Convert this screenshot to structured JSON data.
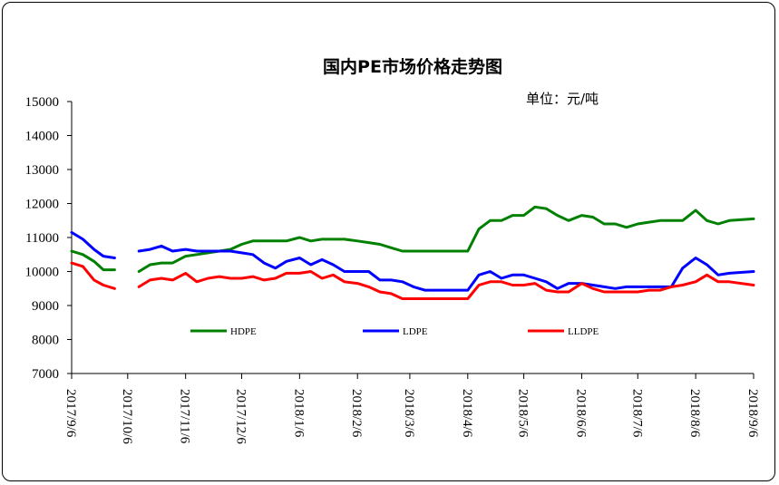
{
  "chart_data": {
    "type": "line",
    "title": "国内PE市场价格走势图",
    "unit_label": "单位：元/吨",
    "ylim": [
      7000,
      15000
    ],
    "yticks": [
      7000,
      8000,
      9000,
      10000,
      11000,
      12000,
      13000,
      14000,
      15000
    ],
    "x_start": "2017-09-06",
    "x_end": "2018-09-06",
    "x_ticks": [
      "2017/9/6",
      "2017/10/6",
      "2017/11/6",
      "2017/12/6",
      "2018/1/6",
      "2018/2/6",
      "2018/3/6",
      "2018/4/6",
      "2018/5/6",
      "2018/6/6",
      "2018/7/6",
      "2018/8/6",
      "2018/9/6"
    ],
    "legend_position": "bottom-inside",
    "grid": false,
    "series": [
      {
        "name": "HDPE",
        "color": "#008000",
        "segments": [
          [
            [
              "2017-09-06",
              10600
            ],
            [
              "2017-09-12",
              10500
            ],
            [
              "2017-09-18",
              10300
            ],
            [
              "2017-09-23",
              10050
            ],
            [
              "2017-09-29",
              10050
            ]
          ],
          [
            [
              "2017-10-12",
              10000
            ],
            [
              "2017-10-18",
              10200
            ],
            [
              "2017-10-24",
              10250
            ],
            [
              "2017-10-30",
              10250
            ],
            [
              "2017-11-06",
              10450
            ],
            [
              "2017-11-12",
              10500
            ],
            [
              "2017-11-18",
              10550
            ],
            [
              "2017-11-24",
              10600
            ],
            [
              "2017-11-30",
              10650
            ],
            [
              "2017-12-06",
              10800
            ],
            [
              "2017-12-12",
              10900
            ],
            [
              "2017-12-18",
              10900
            ],
            [
              "2017-12-24",
              10900
            ],
            [
              "2017-12-30",
              10900
            ],
            [
              "2018-01-06",
              11000
            ],
            [
              "2018-01-12",
              10900
            ],
            [
              "2018-01-18",
              10950
            ],
            [
              "2018-01-24",
              10950
            ],
            [
              "2018-01-30",
              10950
            ],
            [
              "2018-02-06",
              10900
            ],
            [
              "2018-02-12",
              10850
            ],
            [
              "2018-02-18",
              10800
            ],
            [
              "2018-02-24",
              10700
            ],
            [
              "2018-03-02",
              10600
            ],
            [
              "2018-03-08",
              10600
            ],
            [
              "2018-03-14",
              10600
            ],
            [
              "2018-03-20",
              10600
            ],
            [
              "2018-04-06",
              10600
            ],
            [
              "2018-04-12",
              11250
            ],
            [
              "2018-04-18",
              11500
            ],
            [
              "2018-04-24",
              11500
            ],
            [
              "2018-04-30",
              11650
            ],
            [
              "2018-05-06",
              11650
            ],
            [
              "2018-05-12",
              11900
            ],
            [
              "2018-05-18",
              11850
            ],
            [
              "2018-05-24",
              11650
            ],
            [
              "2018-05-30",
              11500
            ],
            [
              "2018-06-06",
              11650
            ],
            [
              "2018-06-12",
              11600
            ],
            [
              "2018-06-18",
              11400
            ],
            [
              "2018-06-24",
              11400
            ],
            [
              "2018-06-30",
              11300
            ],
            [
              "2018-07-06",
              11400
            ],
            [
              "2018-07-12",
              11450
            ],
            [
              "2018-07-18",
              11500
            ],
            [
              "2018-07-24",
              11500
            ],
            [
              "2018-07-30",
              11500
            ],
            [
              "2018-08-06",
              11800
            ],
            [
              "2018-08-12",
              11500
            ],
            [
              "2018-08-18",
              11400
            ],
            [
              "2018-08-24",
              11500
            ],
            [
              "2018-09-06",
              11550
            ]
          ]
        ]
      },
      {
        "name": "LDPE",
        "color": "#0000FF",
        "segments": [
          [
            [
              "2017-09-06",
              11150
            ],
            [
              "2017-09-12",
              10950
            ],
            [
              "2017-09-18",
              10650
            ],
            [
              "2017-09-23",
              10450
            ],
            [
              "2017-09-29",
              10400
            ]
          ],
          [
            [
              "2017-10-12",
              10600
            ],
            [
              "2017-10-18",
              10650
            ],
            [
              "2017-10-24",
              10750
            ],
            [
              "2017-10-30",
              10600
            ],
            [
              "2017-11-06",
              10650
            ],
            [
              "2017-11-12",
              10600
            ],
            [
              "2017-11-18",
              10600
            ],
            [
              "2017-11-24",
              10600
            ],
            [
              "2017-11-30",
              10600
            ],
            [
              "2017-12-06",
              10550
            ],
            [
              "2017-12-12",
              10500
            ],
            [
              "2017-12-18",
              10250
            ],
            [
              "2017-12-24",
              10100
            ],
            [
              "2017-12-30",
              10300
            ],
            [
              "2018-01-06",
              10400
            ],
            [
              "2018-01-12",
              10200
            ],
            [
              "2018-01-18",
              10350
            ],
            [
              "2018-01-24",
              10200
            ],
            [
              "2018-01-30",
              10000
            ],
            [
              "2018-02-06",
              10000
            ],
            [
              "2018-02-12",
              10000
            ],
            [
              "2018-02-18",
              9750
            ],
            [
              "2018-02-24",
              9750
            ],
            [
              "2018-03-02",
              9700
            ],
            [
              "2018-03-08",
              9550
            ],
            [
              "2018-03-14",
              9450
            ],
            [
              "2018-03-20",
              9450
            ],
            [
              "2018-04-06",
              9450
            ],
            [
              "2018-04-12",
              9900
            ],
            [
              "2018-04-18",
              10000
            ],
            [
              "2018-04-24",
              9800
            ],
            [
              "2018-04-30",
              9900
            ],
            [
              "2018-05-06",
              9900
            ],
            [
              "2018-05-12",
              9800
            ],
            [
              "2018-05-18",
              9700
            ],
            [
              "2018-05-24",
              9500
            ],
            [
              "2018-05-30",
              9650
            ],
            [
              "2018-06-06",
              9650
            ],
            [
              "2018-06-12",
              9600
            ],
            [
              "2018-06-18",
              9550
            ],
            [
              "2018-06-24",
              9500
            ],
            [
              "2018-06-30",
              9550
            ],
            [
              "2018-07-06",
              9550
            ],
            [
              "2018-07-12",
              9550
            ],
            [
              "2018-07-18",
              9550
            ],
            [
              "2018-07-24",
              9550
            ],
            [
              "2018-07-30",
              10100
            ],
            [
              "2018-08-06",
              10400
            ],
            [
              "2018-08-12",
              10200
            ],
            [
              "2018-08-18",
              9900
            ],
            [
              "2018-08-24",
              9950
            ],
            [
              "2018-09-06",
              10000
            ]
          ]
        ]
      },
      {
        "name": "LLDPE",
        "color": "#FF0000",
        "segments": [
          [
            [
              "2017-09-06",
              10250
            ],
            [
              "2017-09-12",
              10150
            ],
            [
              "2017-09-18",
              9750
            ],
            [
              "2017-09-23",
              9600
            ],
            [
              "2017-09-29",
              9500
            ]
          ],
          [
            [
              "2017-10-12",
              9550
            ],
            [
              "2017-10-18",
              9750
            ],
            [
              "2017-10-24",
              9800
            ],
            [
              "2017-10-30",
              9750
            ],
            [
              "2017-11-06",
              9950
            ],
            [
              "2017-11-12",
              9700
            ],
            [
              "2017-11-18",
              9800
            ],
            [
              "2017-11-24",
              9850
            ],
            [
              "2017-11-30",
              9800
            ],
            [
              "2017-12-06",
              9800
            ],
            [
              "2017-12-12",
              9850
            ],
            [
              "2017-12-18",
              9750
            ],
            [
              "2017-12-24",
              9800
            ],
            [
              "2017-12-30",
              9950
            ],
            [
              "2018-01-06",
              9950
            ],
            [
              "2018-01-12",
              10000
            ],
            [
              "2018-01-18",
              9800
            ],
            [
              "2018-01-24",
              9900
            ],
            [
              "2018-01-30",
              9700
            ],
            [
              "2018-02-06",
              9650
            ],
            [
              "2018-02-12",
              9550
            ],
            [
              "2018-02-18",
              9400
            ],
            [
              "2018-02-24",
              9350
            ],
            [
              "2018-03-02",
              9200
            ],
            [
              "2018-03-08",
              9200
            ],
            [
              "2018-03-14",
              9200
            ],
            [
              "2018-03-20",
              9200
            ],
            [
              "2018-04-06",
              9200
            ],
            [
              "2018-04-12",
              9600
            ],
            [
              "2018-04-18",
              9700
            ],
            [
              "2018-04-24",
              9700
            ],
            [
              "2018-04-30",
              9600
            ],
            [
              "2018-05-06",
              9600
            ],
            [
              "2018-05-12",
              9650
            ],
            [
              "2018-05-18",
              9450
            ],
            [
              "2018-05-24",
              9400
            ],
            [
              "2018-05-30",
              9400
            ],
            [
              "2018-06-06",
              9650
            ],
            [
              "2018-06-12",
              9500
            ],
            [
              "2018-06-18",
              9400
            ],
            [
              "2018-06-24",
              9400
            ],
            [
              "2018-06-30",
              9400
            ],
            [
              "2018-07-06",
              9400
            ],
            [
              "2018-07-12",
              9450
            ],
            [
              "2018-07-18",
              9450
            ],
            [
              "2018-07-24",
              9550
            ],
            [
              "2018-07-30",
              9600
            ],
            [
              "2018-08-06",
              9700
            ],
            [
              "2018-08-12",
              9900
            ],
            [
              "2018-08-18",
              9700
            ],
            [
              "2018-08-24",
              9700
            ],
            [
              "2018-09-06",
              9600
            ]
          ]
        ]
      }
    ]
  }
}
